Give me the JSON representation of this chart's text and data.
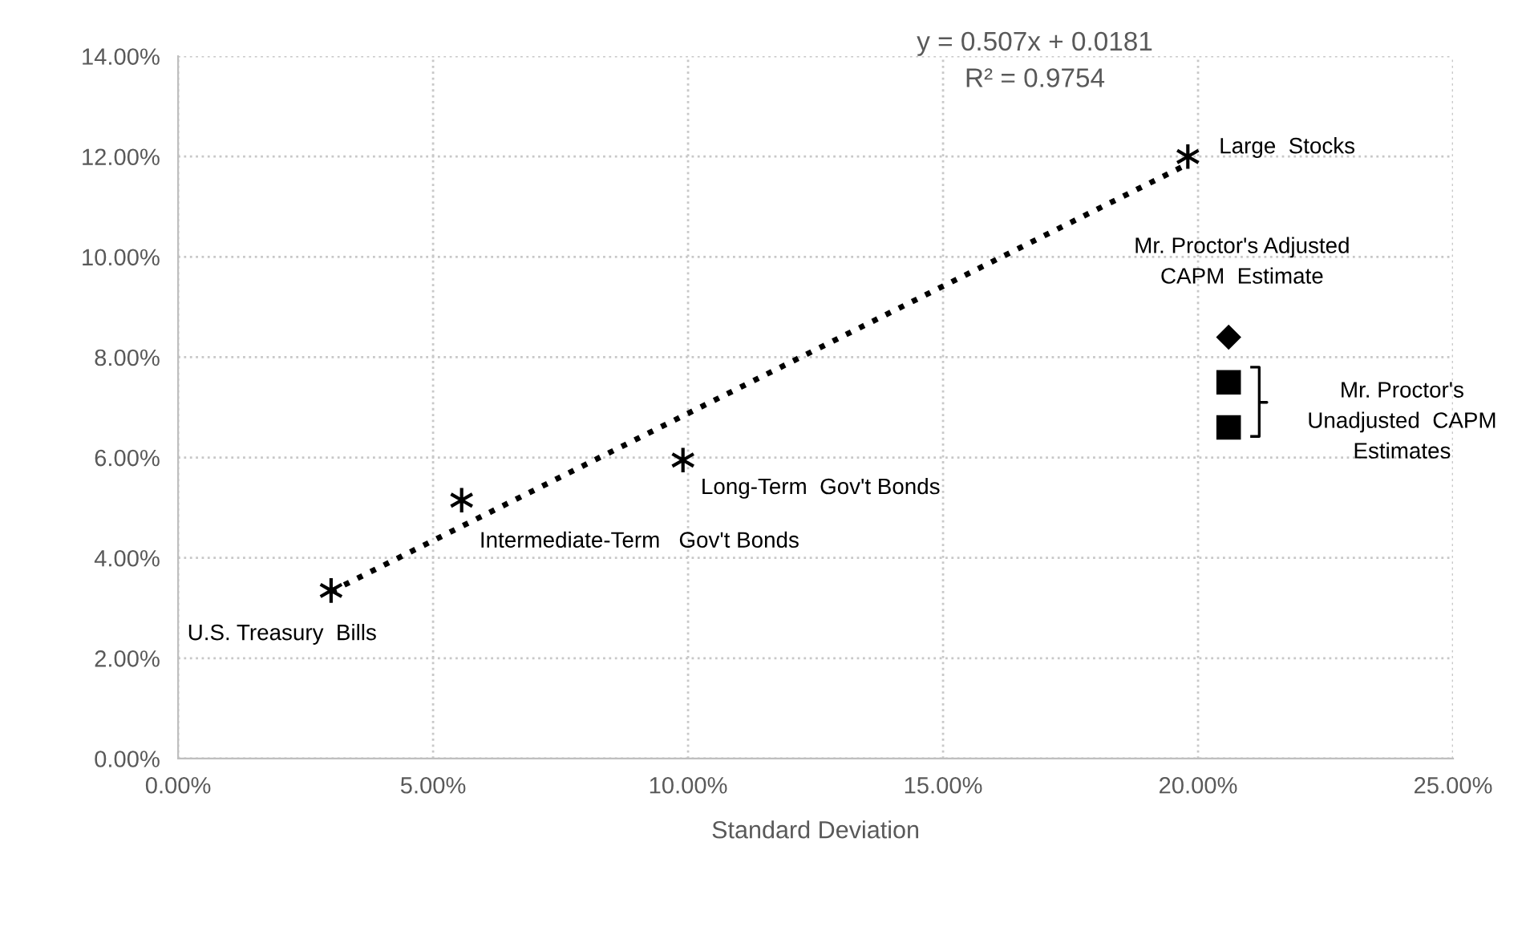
{
  "chart_data": {
    "type": "scatter",
    "xlabel": "Standard Deviation",
    "xlim": [
      0,
      25
    ],
    "xticks": [
      {
        "value": 0,
        "label": "0.00%"
      },
      {
        "value": 5,
        "label": "5.00%"
      },
      {
        "value": 10,
        "label": "10.00%"
      },
      {
        "value": 15,
        "label": "15.00%"
      },
      {
        "value": 20,
        "label": "20.00%"
      },
      {
        "value": 25,
        "label": "25.00%"
      }
    ],
    "ylim": [
      0,
      14
    ],
    "yticks": [
      {
        "value": 0,
        "label": "0.00%"
      },
      {
        "value": 2,
        "label": "2.00%"
      },
      {
        "value": 4,
        "label": "4.00%"
      },
      {
        "value": 6,
        "label": "6.00%"
      },
      {
        "value": 8,
        "label": "8.00%"
      },
      {
        "value": 10,
        "label": "10.00%"
      },
      {
        "value": 12,
        "label": "12.00%"
      },
      {
        "value": 14,
        "label": "14.00%"
      }
    ],
    "grid": true,
    "series": [
      {
        "marker": "cross",
        "color": "#000000",
        "x": [
          3.0,
          5.56,
          9.9,
          19.8
        ],
        "values": [
          3.35,
          5.15,
          5.95,
          12.0
        ]
      },
      {
        "marker": "diamond",
        "color": "#000000",
        "x": [
          20.6
        ],
        "values": [
          8.4
        ]
      },
      {
        "marker": "square",
        "color": "#000000",
        "x": [
          20.6,
          20.6
        ],
        "values": [
          7.5,
          6.6
        ]
      },
      {
        "type": "line",
        "line_style": "dotted",
        "marker": "none",
        "color": "#000000",
        "x": [
          3.0,
          19.8
        ],
        "values": [
          3.33,
          11.85
        ]
      }
    ],
    "annotations": [
      {
        "text": "U.S. Treasury  Bills",
        "x": 3.0,
        "y": 3.35
      },
      {
        "text": "Intermediate-Term   Gov't Bonds",
        "x": 5.56,
        "y": 5.15
      },
      {
        "text": "Long-Term  Gov't Bonds",
        "x": 9.9,
        "y": 5.95
      },
      {
        "text": "Large  Stocks",
        "x": 19.8,
        "y": 12.0
      },
      {
        "text": "Mr. Proctor's Adjusted\nCAPM  Estimate",
        "x": 20.6,
        "y": 8.4
      },
      "Mr. Proctor's\nUnadjusted  CAPM\nEstimates",
      "y = 0.507x + 0.0181",
      "R² = 0.9754"
    ]
  }
}
